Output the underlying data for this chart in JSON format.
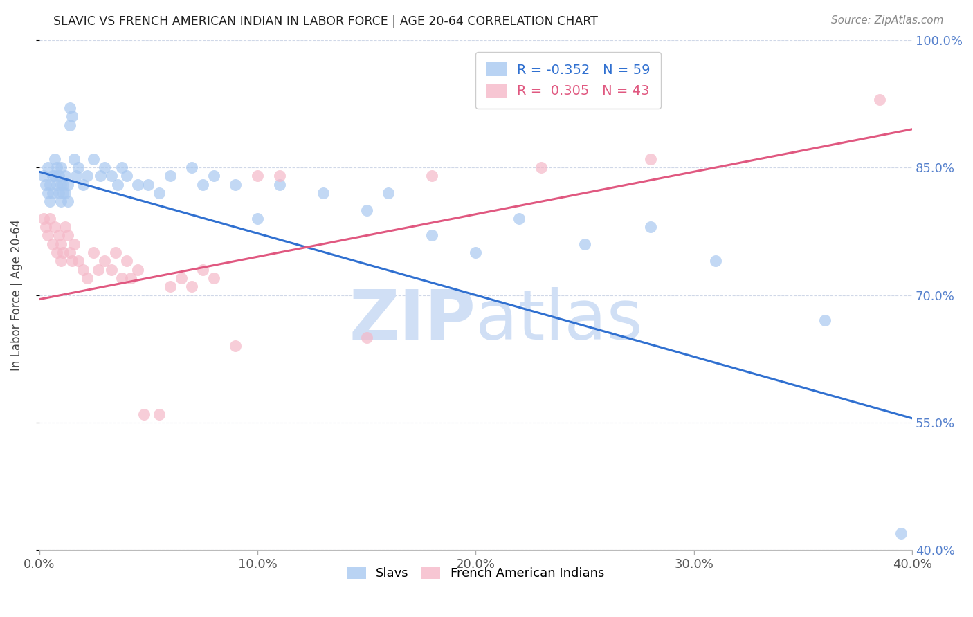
{
  "title": "SLAVIC VS FRENCH AMERICAN INDIAN IN LABOR FORCE | AGE 20-64 CORRELATION CHART",
  "source": "Source: ZipAtlas.com",
  "ylabel": "In Labor Force | Age 20-64",
  "xlim": [
    0.0,
    0.4
  ],
  "ylim": [
    0.4,
    1.0
  ],
  "xticks": [
    0.0,
    0.1,
    0.2,
    0.3,
    0.4
  ],
  "yticks_right": [
    1.0,
    0.85,
    0.7,
    0.55,
    0.4
  ],
  "ytick_labels_right": [
    "100.0%",
    "85.0%",
    "70.0%",
    "55.0%",
    "40.0%"
  ],
  "xtick_labels": [
    "0.0%",
    "10.0%",
    "20.0%",
    "30.0%",
    "40.0%"
  ],
  "legend_blue_r": "-0.352",
  "legend_blue_n": "59",
  "legend_pink_r": "0.305",
  "legend_pink_n": "43",
  "blue_color": "#a8c8f0",
  "pink_color": "#f5b8c8",
  "blue_line_color": "#3070d0",
  "pink_line_color": "#e05880",
  "watermark_color": "#d0dff5",
  "background_color": "#ffffff",
  "grid_color": "#d0d8e8",
  "blue_x": [
    0.002,
    0.003,
    0.004,
    0.004,
    0.005,
    0.005,
    0.006,
    0.006,
    0.007,
    0.007,
    0.008,
    0.008,
    0.009,
    0.009,
    0.01,
    0.01,
    0.01,
    0.011,
    0.011,
    0.012,
    0.012,
    0.013,
    0.013,
    0.014,
    0.014,
    0.015,
    0.016,
    0.017,
    0.018,
    0.02,
    0.022,
    0.025,
    0.028,
    0.03,
    0.033,
    0.036,
    0.038,
    0.04,
    0.045,
    0.05,
    0.055,
    0.06,
    0.07,
    0.075,
    0.08,
    0.09,
    0.1,
    0.11,
    0.13,
    0.15,
    0.16,
    0.18,
    0.2,
    0.22,
    0.25,
    0.28,
    0.31,
    0.36,
    0.395
  ],
  "blue_y": [
    0.84,
    0.83,
    0.82,
    0.85,
    0.83,
    0.81,
    0.84,
    0.82,
    0.86,
    0.84,
    0.85,
    0.83,
    0.84,
    0.82,
    0.85,
    0.83,
    0.81,
    0.83,
    0.82,
    0.84,
    0.82,
    0.83,
    0.81,
    0.92,
    0.9,
    0.91,
    0.86,
    0.84,
    0.85,
    0.83,
    0.84,
    0.86,
    0.84,
    0.85,
    0.84,
    0.83,
    0.85,
    0.84,
    0.83,
    0.83,
    0.82,
    0.84,
    0.85,
    0.83,
    0.84,
    0.83,
    0.79,
    0.83,
    0.82,
    0.8,
    0.82,
    0.77,
    0.75,
    0.79,
    0.76,
    0.78,
    0.74,
    0.67,
    0.42
  ],
  "pink_x": [
    0.002,
    0.003,
    0.004,
    0.005,
    0.006,
    0.007,
    0.008,
    0.009,
    0.01,
    0.01,
    0.011,
    0.012,
    0.013,
    0.014,
    0.015,
    0.016,
    0.018,
    0.02,
    0.022,
    0.025,
    0.027,
    0.03,
    0.033,
    0.035,
    0.038,
    0.04,
    0.042,
    0.045,
    0.048,
    0.055,
    0.06,
    0.065,
    0.07,
    0.075,
    0.08,
    0.09,
    0.1,
    0.11,
    0.15,
    0.18,
    0.23,
    0.28,
    0.385
  ],
  "pink_y": [
    0.79,
    0.78,
    0.77,
    0.79,
    0.76,
    0.78,
    0.75,
    0.77,
    0.76,
    0.74,
    0.75,
    0.78,
    0.77,
    0.75,
    0.74,
    0.76,
    0.74,
    0.73,
    0.72,
    0.75,
    0.73,
    0.74,
    0.73,
    0.75,
    0.72,
    0.74,
    0.72,
    0.73,
    0.56,
    0.56,
    0.71,
    0.72,
    0.71,
    0.73,
    0.72,
    0.64,
    0.84,
    0.84,
    0.65,
    0.84,
    0.85,
    0.86,
    0.93
  ],
  "blue_line_y0": 0.845,
  "blue_line_y1": 0.555,
  "pink_line_y0": 0.695,
  "pink_line_y1": 0.895
}
